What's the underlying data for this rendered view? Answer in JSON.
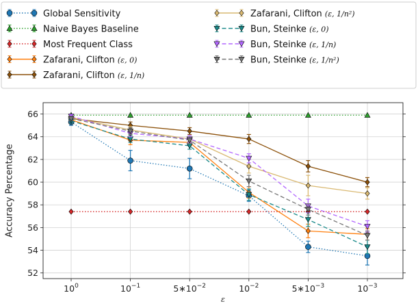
{
  "chart_data": {
    "type": "line",
    "xlabel": "ε",
    "ylabel": "Accuracy Percentage",
    "x": [
      "1",
      "0.1",
      "0.05",
      "0.01",
      "0.005",
      "0.001"
    ],
    "x_tick_labels": [
      {
        "base": "10",
        "exp": "0"
      },
      {
        "base": "10",
        "exp": "−1"
      },
      {
        "base": "5∗10",
        "exp": "−2"
      },
      {
        "base": "10",
        "exp": "−2"
      },
      {
        "base": "5∗10",
        "exp": "−3"
      },
      {
        "base": "10",
        "exp": "−3"
      }
    ],
    "ylim": [
      51.5,
      67
    ],
    "yticks": [
      52,
      54,
      56,
      58,
      60,
      62,
      64,
      66
    ],
    "grid": true,
    "legend_placement": "top",
    "series": [
      {
        "name": "Global Sensitivity",
        "name_math": "",
        "color": "#1f77b4",
        "dash": "dotted",
        "marker": "circle",
        "values": [
          65.3,
          61.9,
          61.2,
          58.8,
          54.3,
          53.5
        ],
        "err": [
          0.3,
          0.9,
          0.9,
          0.5,
          0.5,
          0.8
        ]
      },
      {
        "name": "Naive Bayes Baseline",
        "name_math": "",
        "color": "#2ca02c",
        "dash": "dotted",
        "marker": "triangle-up",
        "values": [
          65.9,
          65.9,
          65.9,
          65.9,
          65.9,
          65.9
        ],
        "err": [
          0,
          0,
          0,
          0,
          0,
          0
        ]
      },
      {
        "name": "Most Frequent Class",
        "name_math": "",
        "color": "#d62728",
        "dash": "dotted",
        "marker": "diamond",
        "values": [
          57.4,
          57.4,
          57.4,
          57.4,
          57.4,
          57.4
        ],
        "err": [
          0,
          0,
          0,
          0,
          0,
          0
        ]
      },
      {
        "name": "Zafarani, Clifton ",
        "name_math": "(ε, 0)",
        "color": "#ff7f0e",
        "dash": "solid",
        "marker": "diamond",
        "values": [
          65.5,
          63.7,
          63.5,
          59.1,
          55.7,
          55.4
        ],
        "err": [
          0.3,
          0.4,
          0.3,
          0.5,
          0.6,
          0.5
        ]
      },
      {
        "name": "Zafarani, Clifton ",
        "name_math": "(ε, 1/n)",
        "color": "#8c510a",
        "dash": "solid",
        "marker": "diamond",
        "values": [
          65.6,
          65.0,
          64.5,
          63.8,
          61.4,
          60.0
        ],
        "err": [
          0.2,
          0.3,
          0.3,
          0.4,
          0.5,
          0.4
        ]
      },
      {
        "name": "Zafarani, Clifton ",
        "name_math": "(ε, 1/n²)",
        "color": "#d9b870",
        "dash": "solid",
        "marker": "diamond",
        "values": [
          65.7,
          64.6,
          63.8,
          61.4,
          59.7,
          59.0
        ],
        "err": [
          0.2,
          0.3,
          0.3,
          0.6,
          0.9,
          0.5
        ]
      },
      {
        "name": "Bun, Steinke ",
        "name_math": "(ε, 0)",
        "color": "#1a8a8a",
        "dash": "dashed",
        "marker": "triangle-down",
        "values": [
          65.4,
          63.8,
          63.2,
          58.9,
          56.7,
          54.3
        ],
        "err": [
          0.2,
          0.3,
          0.3,
          0.5,
          0.6,
          0.6
        ]
      },
      {
        "name": "Bun, Steinke ",
        "name_math": "(ε, 1/n)",
        "color": "#b266ff",
        "dash": "dashed",
        "marker": "triangle-down",
        "values": [
          65.8,
          64.3,
          63.8,
          62.1,
          57.9,
          56.1
        ],
        "err": [
          0.2,
          0.3,
          0.3,
          0.4,
          0.6,
          0.5
        ]
      },
      {
        "name": "Bun, Steinke ",
        "name_math": "(ε, 1/n²)",
        "color": "#777777",
        "dash": "dashed",
        "marker": "triangle-down",
        "values": [
          65.6,
          64.5,
          63.7,
          60.1,
          57.6,
          55.3
        ],
        "err": [
          0.2,
          0.3,
          0.3,
          0.5,
          0.5,
          0.4
        ]
      }
    ]
  }
}
